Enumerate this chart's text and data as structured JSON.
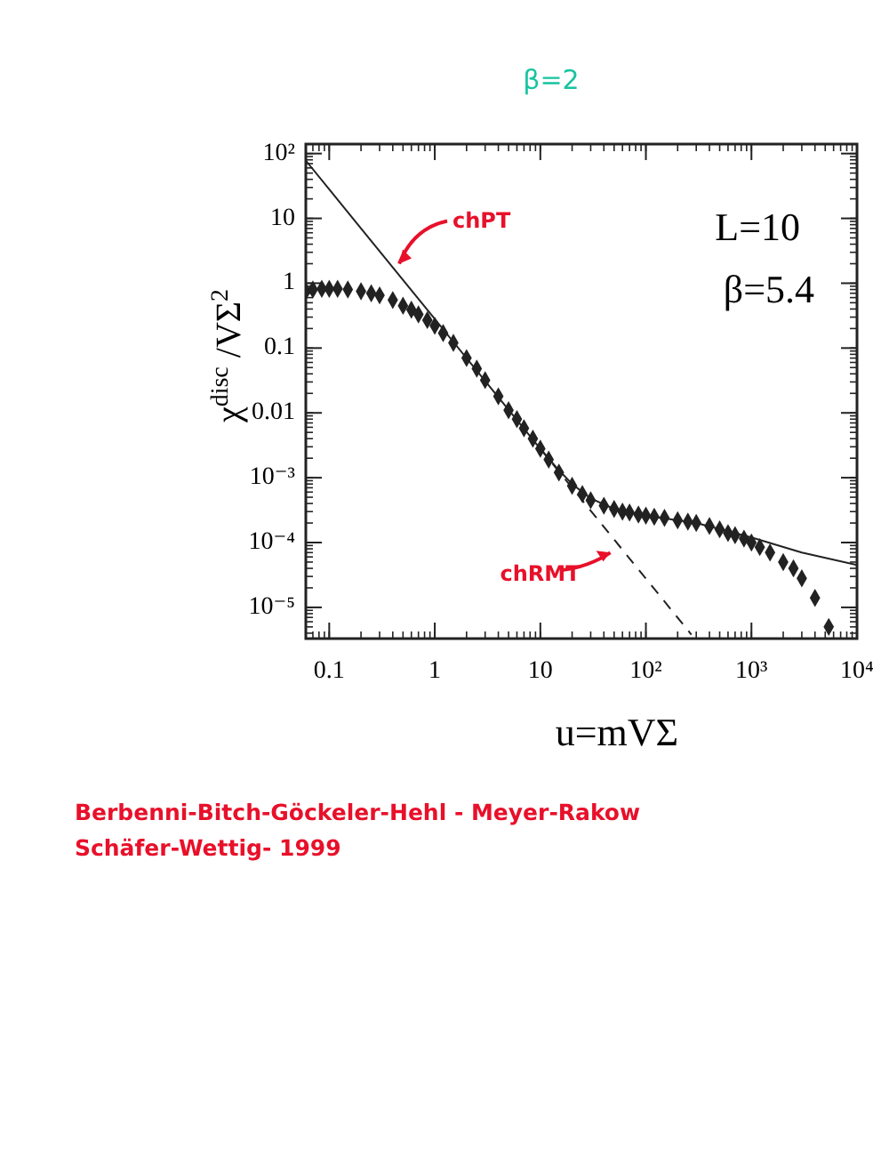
{
  "chart_data": {
    "type": "scatter",
    "title": "β=2",
    "xlabel": "u=mVΣ",
    "ylabel": "χ$^{disc}$ /VΣ$^{2}$",
    "log": "xy",
    "xlim": [
      0.06,
      10000
    ],
    "ylim": [
      3.3e-06,
      140
    ],
    "xticks": [
      0.1,
      1,
      10,
      {
        "value": 100,
        "label": "10²"
      },
      {
        "value": 1000,
        "label": "10³"
      },
      {
        "value": 10000,
        "label": "10⁴"
      }
    ],
    "yticks": [
      {
        "value": 100,
        "label": "10²"
      },
      10,
      1,
      0.1,
      0.01,
      {
        "value": 0.001,
        "label": "10⁻³"
      },
      {
        "value": 0.0001,
        "label": "10⁻⁴"
      },
      {
        "value": 1e-05,
        "label": "10⁻⁵"
      }
    ],
    "grid": false,
    "annotations": [
      {
        "text": "chPT",
        "x": 0.46,
        "y": 2
      },
      "L=10",
      "β=5.4",
      "chRMT",
      "Berbenni-Bitch-Göckeler-Hehl - Meyer-Rakow",
      "Schäfer-Wettig- 1999"
    ],
    "series": [
      {
        "marker": "diamond",
        "color": "#222222",
        "x": [
          0.06,
          0.07,
          0.085,
          0.1,
          0.12,
          0.15,
          0.2,
          0.25,
          0.3,
          0.4,
          0.5,
          0.6,
          0.7,
          0.85,
          1,
          1.2,
          1.5,
          2,
          2.5,
          3,
          4,
          5,
          6,
          7,
          8.5,
          10,
          12,
          15,
          20,
          25,
          30,
          40,
          50,
          60,
          70,
          85,
          100,
          120,
          150,
          200,
          250,
          300,
          400,
          500,
          600,
          700,
          850,
          1000,
          1200,
          1500,
          2000,
          2500,
          3000,
          4000,
          5400
        ],
        "values": [
          0.75,
          0.8,
          0.82,
          0.82,
          0.82,
          0.8,
          0.75,
          0.7,
          0.65,
          0.55,
          0.45,
          0.39,
          0.33,
          0.27,
          0.22,
          0.17,
          0.12,
          0.07,
          0.048,
          0.032,
          0.018,
          0.011,
          0.008,
          0.0058,
          0.004,
          0.0028,
          0.0019,
          0.0012,
          0.00075,
          0.00056,
          0.00045,
          0.00037,
          0.00033,
          0.0003,
          0.00029,
          0.00027,
          0.00026,
          0.00025,
          0.00024,
          0.00022,
          0.00021,
          0.0002,
          0.00018,
          0.00016,
          0.00014,
          0.00013,
          0.000115,
          0.0001,
          8.5e-05,
          7e-05,
          5e-05,
          4e-05,
          2.8e-05,
          1.4e-05,
          5e-06
        ]
      },
      {
        "type": "line",
        "line_style": "solid",
        "color": "#222222",
        "x": [
          0.06,
          0.1,
          1,
          3,
          10,
          15,
          20,
          30,
          50,
          100,
          300,
          1000,
          3000,
          10000
        ],
        "values": [
          78,
          28,
          0.28,
          0.031,
          0.0028,
          0.0013,
          0.0008,
          0.00048,
          0.00033,
          0.00026,
          0.0002,
          0.00012,
          7e-05,
          4.5e-05
        ]
      },
      {
        "type": "line",
        "line_style": "dashed",
        "color": "#222222",
        "x": [
          10,
          270
        ],
        "values": [
          0.0028,
          3.8e-06
        ]
      }
    ]
  }
}
